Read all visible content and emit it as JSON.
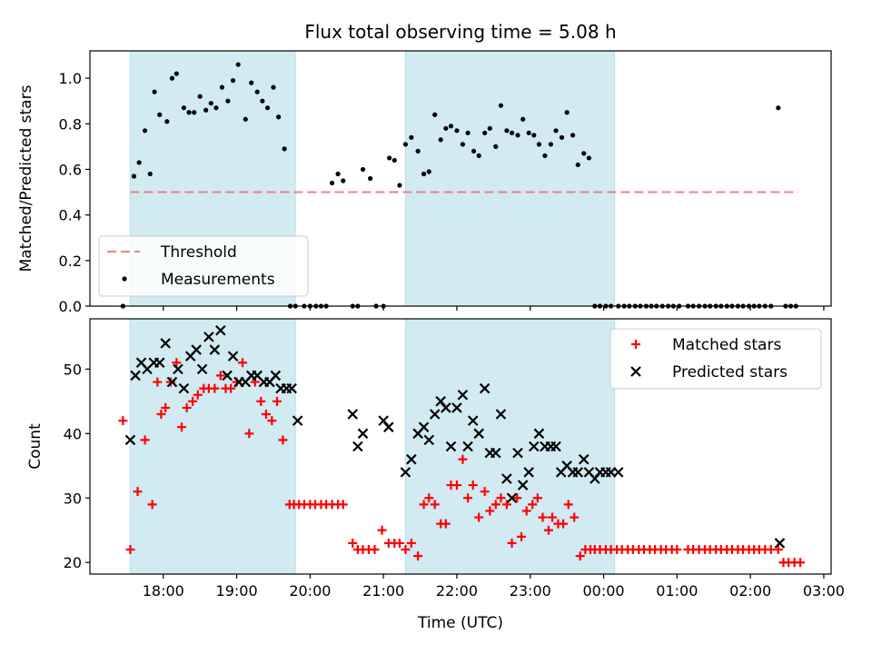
{
  "chart_data": {
    "title": "Flux total observing time = 5.08 h",
    "xlabel": "Time (UTC)",
    "x_unit": "hours (UTC clock, values past 24 are after midnight)",
    "x_range": [
      17.0,
      27.1
    ],
    "x_ticks": [
      {
        "value": 18,
        "label": "18:00"
      },
      {
        "value": 19,
        "label": "19:00"
      },
      {
        "value": 20,
        "label": "20:00"
      },
      {
        "value": 21,
        "label": "21:00"
      },
      {
        "value": 22,
        "label": "22:00"
      },
      {
        "value": 23,
        "label": "23:00"
      },
      {
        "value": 24,
        "label": "00:00"
      },
      {
        "value": 25,
        "label": "01:00"
      },
      {
        "value": 26,
        "label": "02:00"
      },
      {
        "value": 27,
        "label": "03:00"
      }
    ],
    "shaded_intervals": [
      [
        17.55,
        19.8
      ],
      [
        21.3,
        24.15
      ]
    ],
    "shade_color": "#add8e6",
    "panels": [
      {
        "type": "scatter",
        "ylabel": "Matched/Predicted stars",
        "ylim": [
          0,
          1.12
        ],
        "yticks": [
          "0.0",
          "0.2",
          "0.4",
          "0.6",
          "0.8",
          "1.0"
        ],
        "ytick_values": [
          0,
          0.2,
          0.4,
          0.6,
          0.8,
          1.0
        ],
        "legend_position": "lower-left",
        "threshold": {
          "name": "Threshold",
          "value": 0.5,
          "x": [
            17.55,
            26.65
          ],
          "color": "#f08080",
          "style": "dashed"
        },
        "series": [
          {
            "name": "Measurements",
            "color": "#000000",
            "marker": "dot",
            "x": [
              17.45,
              17.6,
              17.67,
              17.75,
              17.82,
              17.88,
              17.95,
              18.05,
              18.12,
              18.18,
              18.28,
              18.35,
              18.42,
              18.5,
              18.58,
              18.65,
              18.72,
              18.8,
              18.88,
              18.95,
              19.02,
              19.12,
              19.2,
              19.28,
              19.35,
              19.42,
              19.5,
              19.57,
              19.65,
              19.73,
              19.8,
              19.92,
              20.0,
              20.08,
              20.15,
              20.22,
              20.3,
              20.38,
              20.45,
              20.58,
              20.65,
              20.72,
              20.82,
              20.9,
              21.0,
              21.08,
              21.15,
              21.22,
              21.3,
              21.38,
              21.47,
              21.55,
              21.62,
              21.7,
              21.78,
              21.85,
              21.92,
              22.0,
              22.08,
              22.15,
              22.23,
              22.3,
              22.38,
              22.45,
              22.53,
              22.6,
              22.68,
              22.75,
              22.83,
              22.9,
              22.98,
              23.05,
              23.12,
              23.2,
              23.28,
              23.35,
              23.43,
              23.5,
              23.58,
              23.65,
              23.73,
              23.8,
              23.88,
              23.95,
              24.03,
              24.1,
              24.2,
              24.28,
              24.35,
              24.43,
              24.5,
              24.58,
              24.65,
              24.72,
              24.8,
              24.88,
              24.95,
              25.03,
              25.15,
              25.22,
              25.3,
              25.38,
              25.45,
              25.53,
              25.6,
              25.68,
              25.75,
              25.83,
              25.9,
              25.98,
              26.05,
              26.12,
              26.2,
              26.28,
              26.38,
              26.48,
              26.55,
              26.62
            ],
            "y": [
              0.0,
              0.57,
              0.63,
              0.77,
              0.58,
              0.94,
              0.84,
              0.81,
              1.0,
              1.02,
              0.87,
              0.85,
              0.85,
              0.92,
              0.86,
              0.89,
              0.87,
              0.96,
              0.9,
              0.99,
              1.06,
              0.82,
              0.98,
              0.94,
              0.9,
              0.87,
              0.96,
              0.83,
              0.69,
              0.0,
              0.0,
              0.0,
              0.0,
              0.0,
              0.0,
              0.0,
              0.54,
              0.58,
              0.55,
              0.0,
              0.0,
              0.6,
              0.56,
              0.0,
              0.0,
              0.65,
              0.64,
              0.53,
              0.71,
              0.74,
              0.68,
              0.58,
              0.59,
              0.84,
              0.73,
              0.78,
              0.79,
              0.77,
              0.71,
              0.76,
              0.68,
              0.66,
              0.76,
              0.78,
              0.7,
              0.88,
              0.77,
              0.76,
              0.75,
              0.82,
              0.76,
              0.75,
              0.71,
              0.66,
              0.71,
              0.77,
              0.74,
              0.85,
              0.75,
              0.62,
              0.67,
              0.65,
              0.0,
              0.0,
              0.0,
              0.0,
              0.0,
              0.0,
              0.0,
              0.0,
              0.0,
              0.0,
              0.0,
              0.0,
              0.0,
              0.0,
              0.0,
              0.0,
              0.0,
              0.0,
              0.0,
              0.0,
              0.0,
              0.0,
              0.0,
              0.0,
              0.0,
              0.0,
              0.0,
              0.0,
              0.0,
              0.0,
              0.0,
              0.0,
              0.87,
              0.0,
              0.0,
              0.0
            ]
          }
        ]
      },
      {
        "type": "scatter",
        "ylabel": "Count",
        "ylim": [
          18.2,
          57.8
        ],
        "yticks": [
          "20",
          "30",
          "40",
          "50"
        ],
        "ytick_values": [
          20,
          30,
          40,
          50
        ],
        "legend_position": "upper-right",
        "series": [
          {
            "name": "Matched stars",
            "color": "#ff0000",
            "marker": "plus",
            "x": [
              17.45,
              17.55,
              17.65,
              17.75,
              17.85,
              17.92,
              17.97,
              18.03,
              18.1,
              18.18,
              18.25,
              18.32,
              18.4,
              18.47,
              18.55,
              18.62,
              18.7,
              18.78,
              18.85,
              18.92,
              19.0,
              19.08,
              19.17,
              19.25,
              19.33,
              19.4,
              19.48,
              19.55,
              19.63,
              19.72,
              19.78,
              19.85,
              19.92,
              20.0,
              20.07,
              20.15,
              20.22,
              20.3,
              20.38,
              20.45,
              20.58,
              20.65,
              20.72,
              20.8,
              20.88,
              20.98,
              21.07,
              21.15,
              21.22,
              21.3,
              21.38,
              21.47,
              21.55,
              21.62,
              21.7,
              21.78,
              21.85,
              21.92,
              22.0,
              22.08,
              22.15,
              22.22,
              22.3,
              22.38,
              22.45,
              22.53,
              22.6,
              22.68,
              22.75,
              22.82,
              22.88,
              22.95,
              23.03,
              23.1,
              23.17,
              23.25,
              23.3,
              23.38,
              23.45,
              23.52,
              23.6,
              23.68,
              23.75,
              23.82,
              23.88,
              23.95,
              24.03,
              24.1,
              24.18,
              24.25,
              24.33,
              24.4,
              24.48,
              24.55,
              24.63,
              24.7,
              24.78,
              24.85,
              24.93,
              25.0,
              25.15,
              25.22,
              25.3,
              25.38,
              25.45,
              25.53,
              25.6,
              25.68,
              25.75,
              25.83,
              25.9,
              25.98,
              26.05,
              26.12,
              26.2,
              26.28,
              26.38,
              26.45,
              26.52,
              26.6,
              26.68
            ],
            "y": [
              42,
              22,
              31,
              39,
              29,
              48,
              43,
              44,
              48,
              51,
              41,
              44,
              45,
              46,
              47,
              47,
              47,
              49,
              47,
              47,
              48,
              51,
              40,
              48,
              45,
              43,
              42,
              45,
              39,
              29,
              29,
              29,
              29,
              29,
              29,
              29,
              29,
              29,
              29,
              29,
              23,
              22,
              22,
              22,
              22,
              25,
              23,
              23,
              23,
              22,
              23,
              21,
              29,
              30,
              29,
              26,
              26,
              32,
              32,
              36,
              30,
              32,
              27,
              31,
              28,
              29,
              30,
              29,
              23,
              30,
              24,
              28,
              29,
              30,
              27,
              25,
              27,
              26,
              26,
              29,
              27,
              21,
              22,
              22,
              22,
              22,
              22,
              22,
              22,
              22,
              22,
              22,
              22,
              22,
              22,
              22,
              22,
              22,
              22,
              22,
              22,
              22,
              22,
              22,
              22,
              22,
              22,
              22,
              22,
              22,
              22,
              22,
              22,
              22,
              22,
              22,
              22,
              20,
              20,
              20,
              20
            ]
          },
          {
            "name": "Predicted stars",
            "color": "#000000",
            "marker": "x",
            "x": [
              17.55,
              17.62,
              17.7,
              17.78,
              17.87,
              17.95,
              18.03,
              18.12,
              18.2,
              18.28,
              18.37,
              18.45,
              18.53,
              18.62,
              18.7,
              18.78,
              18.87,
              18.95,
              19.03,
              19.12,
              19.2,
              19.28,
              19.37,
              19.45,
              19.53,
              19.6,
              19.68,
              19.75,
              19.83,
              20.58,
              20.65,
              20.72,
              21.0,
              21.07,
              21.3,
              21.38,
              21.47,
              21.55,
              21.62,
              21.7,
              21.78,
              21.85,
              21.92,
              22.0,
              22.08,
              22.15,
              22.22,
              22.3,
              22.38,
              22.45,
              22.53,
              22.6,
              22.68,
              22.75,
              22.83,
              22.9,
              22.98,
              23.05,
              23.12,
              23.2,
              23.28,
              23.35,
              23.42,
              23.5,
              23.58,
              23.65,
              23.73,
              23.8,
              23.88,
              23.95,
              24.03,
              24.1,
              24.2,
              26.4
            ],
            "y": [
              39,
              49,
              51,
              50,
              51,
              51,
              54,
              48,
              50,
              47,
              52,
              53,
              50,
              55,
              53,
              56,
              49,
              52,
              48,
              48,
              49,
              49,
              48,
              48,
              49,
              47,
              47,
              47,
              42,
              43,
              38,
              40,
              42,
              41,
              34,
              36,
              40,
              41,
              39,
              43,
              45,
              44,
              38,
              44,
              46,
              38,
              42,
              40,
              47,
              37,
              37,
              43,
              33,
              30,
              37,
              32,
              34,
              38,
              40,
              38,
              38,
              38,
              34,
              35,
              34,
              34,
              36,
              34,
              33,
              34,
              34,
              34,
              34,
              23
            ]
          }
        ]
      }
    ]
  }
}
